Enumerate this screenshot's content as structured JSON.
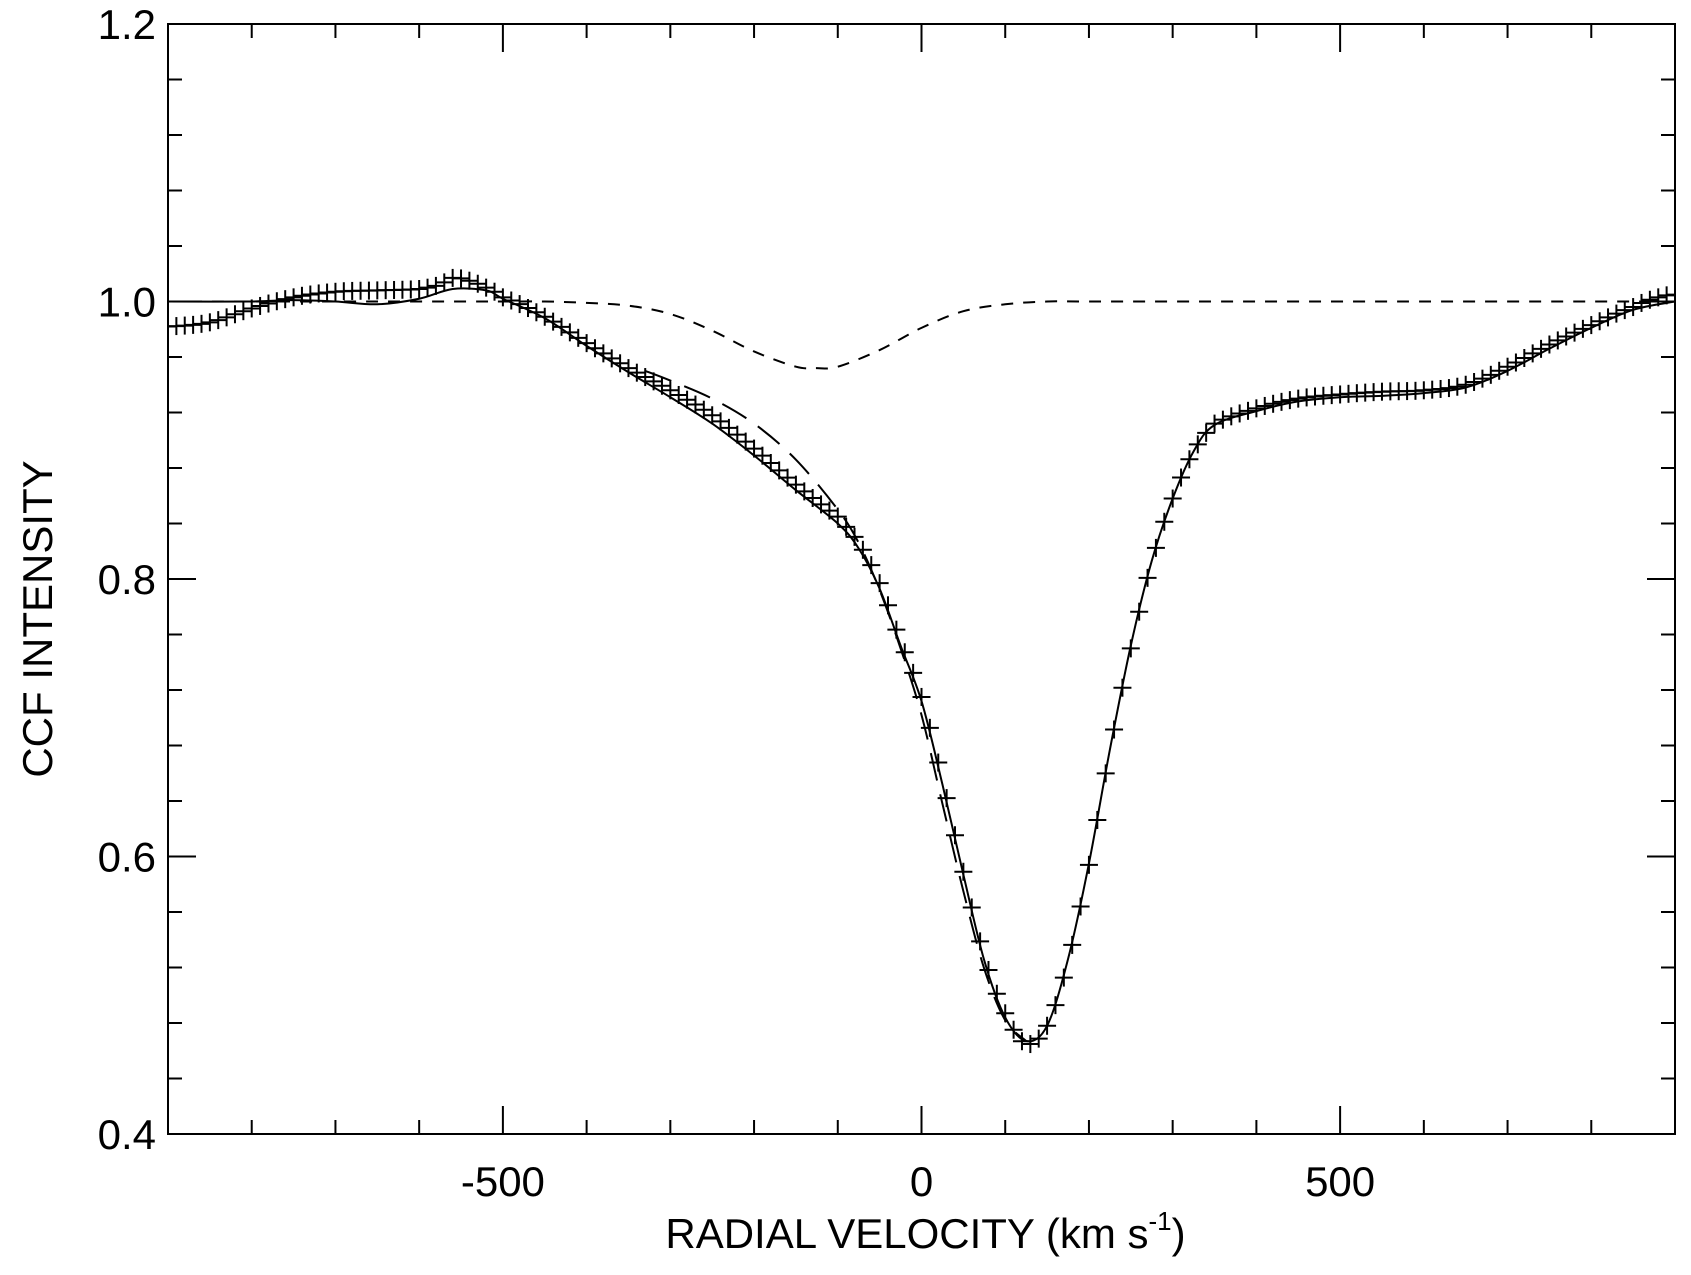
{
  "chart_data": {
    "type": "line",
    "title": "",
    "xlabel": {
      "prefix": "RADIAL VELOCITY (km s",
      "superscript": "-1",
      "suffix": ")"
    },
    "ylabel": "CCF INTENSITY",
    "xlim": [
      -900,
      900
    ],
    "ylim": [
      0.4,
      1.2
    ],
    "grid": false,
    "legend": "none",
    "x_major_ticks": [
      -500,
      0,
      500
    ],
    "x_tick_labels": [
      "-500",
      "0",
      "500"
    ],
    "x_minor_step": 100,
    "y_major_ticks": [
      0.4,
      0.6,
      0.8,
      1.0,
      1.2
    ],
    "y_tick_labels": [
      "0.4",
      "0.6",
      "0.8",
      "1.0",
      "1.2"
    ],
    "y_minor_step": 0.04,
    "observed_points": {
      "marker": "plus",
      "x_start": -900,
      "x_end": 900,
      "x_step": 10,
      "x_nodes": [
        -900,
        -850,
        -800,
        -750,
        -700,
        -650,
        -600,
        -575,
        -560,
        -540,
        -520,
        -500,
        -450,
        -400,
        -350,
        -300,
        -250,
        -200,
        -150,
        -100,
        -75,
        -50,
        -25,
        0,
        25,
        50,
        75,
        100,
        125,
        150,
        175,
        200,
        225,
        250,
        275,
        300,
        325,
        350,
        400,
        450,
        500,
        550,
        600,
        650,
        700,
        750,
        800,
        850,
        880,
        900
      ],
      "y_nodes": [
        0.982,
        0.985,
        0.995,
        1.003,
        1.007,
        1.008,
        1.009,
        1.012,
        1.017,
        1.015,
        1.01,
        1.003,
        0.989,
        0.97,
        0.952,
        0.936,
        0.918,
        0.894,
        0.868,
        0.845,
        0.826,
        0.797,
        0.755,
        0.715,
        0.655,
        0.589,
        0.528,
        0.487,
        0.465,
        0.478,
        0.524,
        0.594,
        0.676,
        0.75,
        0.812,
        0.858,
        0.892,
        0.912,
        0.923,
        0.93,
        0.933,
        0.935,
        0.936,
        0.94,
        0.953,
        0.969,
        0.983,
        0.996,
        1.003,
        1.005
      ]
    },
    "series": [
      {
        "style": "solid",
        "x": [
          -900,
          -800,
          -750,
          -700,
          -650,
          -600,
          -560,
          -520,
          -500,
          -450,
          -400,
          -350,
          -300,
          -250,
          -200,
          -150,
          -100,
          -75,
          -50,
          -25,
          0,
          25,
          50,
          75,
          100,
          125,
          150,
          175,
          200,
          225,
          250,
          275,
          300,
          325,
          350,
          400,
          450,
          500,
          550,
          600,
          650,
          700,
          750,
          800,
          850,
          900
        ],
        "y": [
          1.0,
          1.0,
          1.001,
          1.0,
          0.998,
          1.002,
          1.009,
          1.008,
          1.002,
          0.988,
          0.968,
          0.949,
          0.931,
          0.912,
          0.889,
          0.864,
          0.84,
          0.822,
          0.793,
          0.752,
          0.712,
          0.652,
          0.587,
          0.525,
          0.484,
          0.467,
          0.478,
          0.526,
          0.595,
          0.677,
          0.752,
          0.813,
          0.858,
          0.892,
          0.911,
          0.921,
          0.928,
          0.931,
          0.932,
          0.934,
          0.938,
          0.95,
          0.966,
          0.981,
          0.994,
          1.0
        ]
      },
      {
        "style": "long-dash",
        "x": [
          -330,
          -300,
          -250,
          -200,
          -150,
          -100,
          -75,
          -50,
          -25,
          0,
          25,
          50,
          75,
          100,
          125
        ],
        "y": [
          0.95,
          0.943,
          0.93,
          0.912,
          0.886,
          0.85,
          0.826,
          0.792,
          0.75,
          0.702,
          0.638,
          0.575,
          0.519,
          0.482,
          0.467
        ]
      },
      {
        "style": "short-dash",
        "x": [
          -900,
          -600,
          -500,
          -450,
          -400,
          -350,
          -300,
          -250,
          -200,
          -150,
          -125,
          -100,
          -50,
          0,
          50,
          100,
          150,
          200,
          300,
          500,
          900
        ],
        "y": [
          1.0,
          1.0,
          1.0,
          1.0,
          0.999,
          0.997,
          0.991,
          0.979,
          0.964,
          0.953,
          0.952,
          0.953,
          0.965,
          0.981,
          0.993,
          0.998,
          1.0,
          1.0,
          1.0,
          1.0,
          1.0
        ]
      }
    ]
  }
}
